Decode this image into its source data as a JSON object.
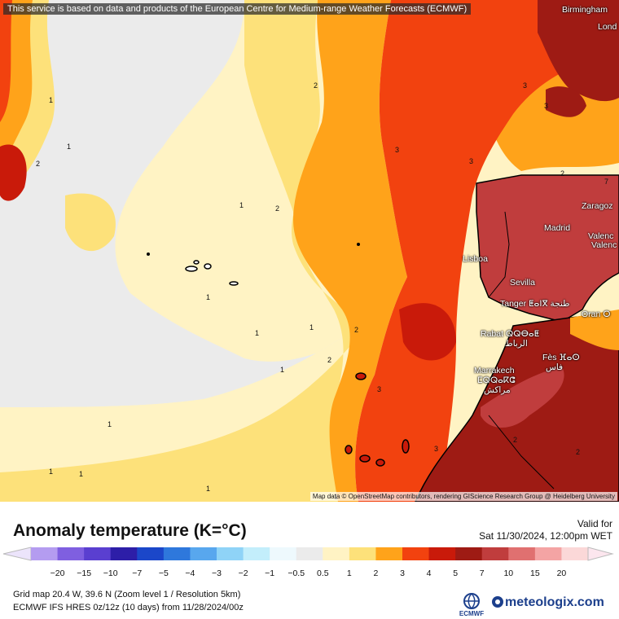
{
  "map": {
    "banner": "This service is based on data and products of the European Centre for Medium-range Weather Forecasts (ECMWF)",
    "attribution": "Map data © OpenStreetMap contributors, rendering GIScience Research Group @ Heidelberg University",
    "cities": [
      {
        "name": "Birmingham"
      },
      {
        "name": "Lond"
      },
      {
        "name": "Madrid"
      },
      {
        "name": "Zaragoz"
      },
      {
        "name": "Valenc"
      },
      {
        "name": "Valenc"
      },
      {
        "name": "Lisboa"
      },
      {
        "name": "Sevilla"
      },
      {
        "name": "Tanger ⵟⴰⵏⴳ طنجة"
      },
      {
        "name": "Oran ⵔ"
      },
      {
        "name": "Rabat ⵕⵕⴱⴰⵟ"
      },
      {
        "name": "الرباط"
      },
      {
        "name": "Fès ⴼⴰⵙ"
      },
      {
        "name": "فاس"
      },
      {
        "name": "Marrakech"
      },
      {
        "name": "ⵎⵕⵕⴰⴽⵛ"
      },
      {
        "name": "مراكش"
      }
    ],
    "contour_labels": [
      "1",
      "1",
      "2",
      "1",
      "2",
      "2",
      "1",
      "1",
      "1",
      "1",
      "2",
      "1",
      "2",
      "3",
      "1",
      "1",
      "1",
      "1",
      "3",
      "3",
      "3",
      "7",
      "2",
      "2",
      "3",
      "2",
      "3"
    ]
  },
  "legend": {
    "title": "Anomaly temperature (K=°C)",
    "valid_label": "Valid for",
    "valid_time": "Sat 11/30/2024, 12:00pm WET",
    "ticks": [
      "−20",
      "−15",
      "−10",
      "−7",
      "−5",
      "−4",
      "−3",
      "−2",
      "−1",
      "−0.5",
      "0.5",
      "1",
      "2",
      "3",
      "4",
      "5",
      "7",
      "10",
      "15",
      "20"
    ],
    "colors": [
      "#b49cf0",
      "#7f5fe0",
      "#5a3fd0",
      "#2d1ea8",
      "#1b47c9",
      "#2e78dc",
      "#58a7ee",
      "#8fd3f7",
      "#c3eefb",
      "#eef9fd",
      "#ebebeb",
      "#fff3c4",
      "#fde17a",
      "#ffa31a",
      "#f2420f",
      "#c91a0a",
      "#9e1b14",
      "#c03d3d",
      "#e07070",
      "#f4a4a4",
      "#fbd8d8"
    ]
  },
  "info": {
    "line1": "Grid map 20.4 W, 39.6 N (Zoom level 1 / Resolution 5km)",
    "line2": "ECMWF IFS HRES 0z/12z (10 days) from  11/28/2024/00z"
  },
  "brand": {
    "ecmwf": "ECMWF",
    "name": "meteologix.com"
  }
}
